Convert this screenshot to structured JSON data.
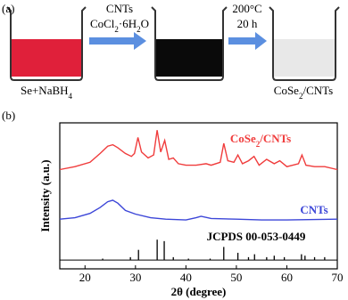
{
  "panel_a": {
    "label": "(a)",
    "step1_above": [
      "CNTs"
    ],
    "step1_below": [
      "CoCl",
      "2",
      "·6H",
      "2",
      "O"
    ],
    "step2_above": [
      "200°C"
    ],
    "step2_below": [
      "20 h"
    ],
    "start_caption": [
      "Se+NaBH",
      "4"
    ],
    "end_caption": [
      "CoSe",
      "2",
      "/CNTs"
    ]
  },
  "chart_data": {
    "type": "line",
    "panel_label": "(b)",
    "x_label": "2θ (degree)",
    "y_label": "Intensity (a.u.)",
    "xlim": [
      15,
      70
    ],
    "xticks": [
      20,
      30,
      40,
      50,
      60,
      70
    ],
    "ylim": [
      0,
      100
    ],
    "series": [
      {
        "name": [
          "CoSe",
          "2",
          "/CNTs"
        ],
        "color": "#f03c3c",
        "x": [
          15,
          18,
          21,
          23,
          24.5,
          25.5,
          26.5,
          28,
          29.2,
          29.8,
          30.5,
          31.2,
          32.5,
          33.6,
          34.3,
          35,
          35.8,
          36.6,
          37.5,
          38.5,
          40,
          42,
          44,
          45,
          46.8,
          47.5,
          48.3,
          49.5,
          50.3,
          51.2,
          52.4,
          53.5,
          54.5,
          56,
          57.5,
          58.6,
          60,
          62.3,
          63,
          63.8,
          65.5,
          67.5,
          70
        ],
        "values": [
          68,
          70,
          73,
          79,
          84,
          85,
          83,
          79,
          77,
          79,
          90,
          80,
          76,
          78,
          95,
          80,
          88,
          75,
          76,
          72,
          71,
          71,
          72,
          71,
          73,
          86,
          74,
          73,
          78,
          72,
          74,
          77,
          71,
          75,
          72,
          74,
          70,
          72,
          78,
          71,
          70,
          70,
          68
        ]
      },
      {
        "name": [
          "CNTs"
        ],
        "color": "#3c46d8",
        "x": [
          15,
          18,
          21,
          23,
          24.5,
          25.5,
          26.5,
          28,
          30,
          33,
          36,
          40,
          42,
          43,
          45,
          50,
          55,
          60,
          70
        ],
        "values": [
          34,
          35,
          38,
          42,
          46,
          47,
          45,
          40,
          37.5,
          35,
          34,
          33.5,
          35,
          36,
          34.5,
          34,
          33.5,
          33.5,
          34
        ]
      },
      {
        "name": [
          "JCPDS 00-053-0449"
        ],
        "color": "#000000",
        "baseline": 6,
        "x": [
          23.5,
          29,
          30.6,
          34.3,
          35.7,
          37.5,
          40.5,
          44.8,
          47.5,
          50.3,
          52.4,
          53.6,
          56,
          57.5,
          59.5,
          62.9,
          63.6,
          65.5,
          67.5
        ],
        "values": [
          7,
          8,
          13,
          20,
          19,
          8,
          7,
          7,
          15,
          11,
          8,
          10,
          8,
          9,
          8,
          10,
          9,
          8,
          8
        ]
      }
    ]
  }
}
